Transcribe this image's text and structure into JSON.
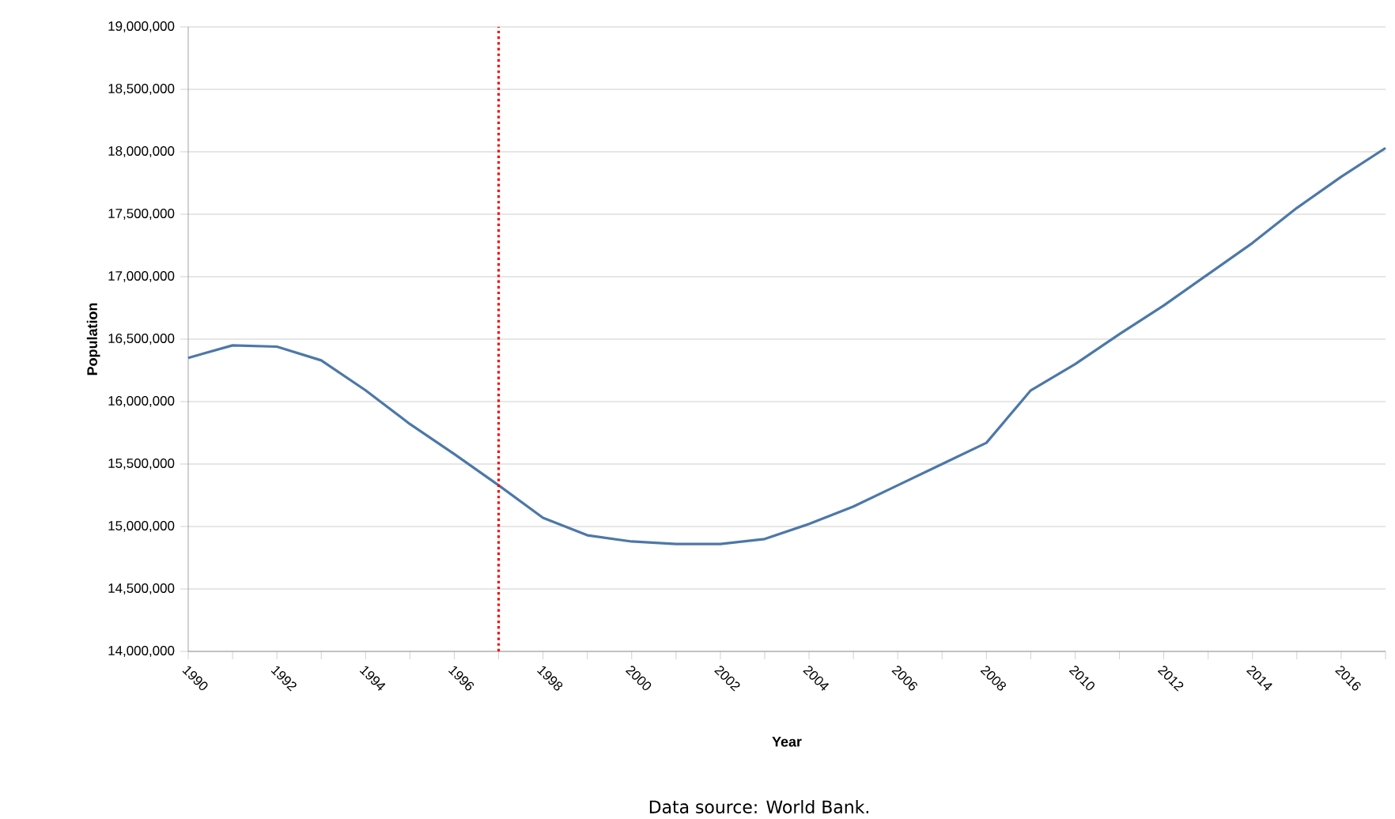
{
  "chart_data": {
    "type": "line",
    "xlabel": "Year",
    "ylabel": "Population",
    "x": [
      1990,
      1991,
      1992,
      1993,
      1994,
      1995,
      1996,
      1997,
      1998,
      1999,
      2000,
      2001,
      2002,
      2003,
      2004,
      2005,
      2006,
      2007,
      2008,
      2009,
      2010,
      2011,
      2012,
      2013,
      2014,
      2015,
      2016,
      2017
    ],
    "series": [
      {
        "color": "#4c78a8",
        "values": [
          16350000,
          16450000,
          16440000,
          16330000,
          16090000,
          15820000,
          15580000,
          15330000,
          15070000,
          14930000,
          14880000,
          14860000,
          14860000,
          14900000,
          15020000,
          15160000,
          15330000,
          15500000,
          15670000,
          16090000,
          16300000,
          16540000,
          16770000,
          17020000,
          17270000,
          17550000,
          17800000,
          18030000
        ]
      }
    ],
    "xlim": [
      1990,
      2017
    ],
    "xticks": [
      1990,
      {
        "value": 1991,
        "label": null
      },
      1992,
      {
        "value": 1993,
        "label": null
      },
      1994,
      {
        "value": 1995,
        "label": null
      },
      1996,
      {
        "value": 1997,
        "label": null
      },
      1998,
      {
        "value": 1999,
        "label": null
      },
      2000,
      {
        "value": 2001,
        "label": null
      },
      2002,
      {
        "value": 2003,
        "label": null
      },
      2004,
      {
        "value": 2005,
        "label": null
      },
      2006,
      {
        "value": 2007,
        "label": null
      },
      2008,
      {
        "value": 2009,
        "label": null
      },
      2010,
      {
        "value": 2011,
        "label": null
      },
      2012,
      {
        "value": 2013,
        "label": null
      },
      2014,
      {
        "value": 2015,
        "label": null
      },
      2016,
      {
        "value": 2017,
        "label": null
      }
    ],
    "ylim": [
      14000000,
      19000000
    ],
    "yticks": [
      {
        "value": 14000000,
        "label": "14,000,000"
      },
      {
        "value": 14500000,
        "label": "14,500,000"
      },
      {
        "value": 15000000,
        "label": "15,000,000"
      },
      {
        "value": 15500000,
        "label": "15,500,000"
      },
      {
        "value": 16000000,
        "label": "16,000,000"
      },
      {
        "value": 16500000,
        "label": "16,500,000"
      },
      {
        "value": 17000000,
        "label": "17,000,000"
      },
      {
        "value": 17500000,
        "label": "17,500,000"
      },
      {
        "value": 18000000,
        "label": "18,000,000"
      },
      {
        "value": 18500000,
        "label": "18,500,000"
      },
      {
        "value": 19000000,
        "label": "19,000,000"
      }
    ],
    "grid": "y",
    "marker": "none",
    "line_style": "solid",
    "ref_lines": [
      {
        "axis": "x",
        "value": 1997,
        "color": "#ff0000",
        "line_style": "dotted"
      }
    ],
    "annotations": [
      "Data source: World Bank."
    ]
  }
}
